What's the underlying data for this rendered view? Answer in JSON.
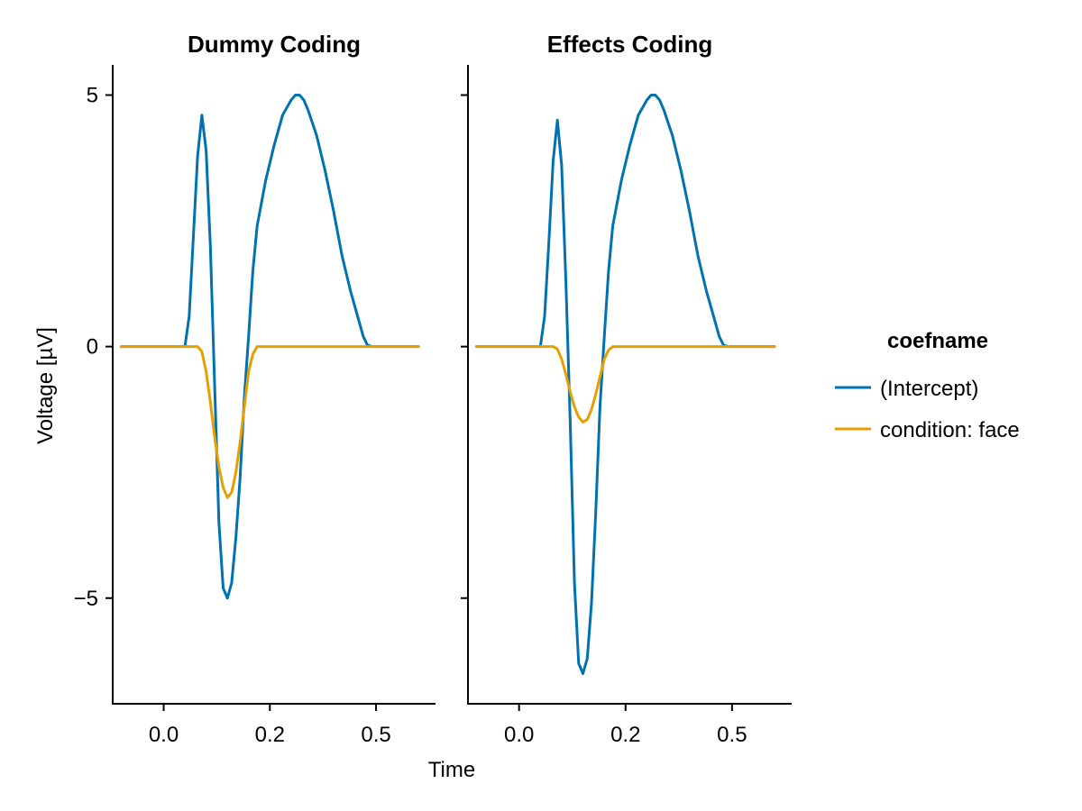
{
  "chart_data": {
    "type": "line",
    "xlabel": "Time",
    "ylabel": "Voltage [µV]",
    "xlim": [
      -0.12,
      0.64
    ],
    "ylim": [
      -7.1,
      5.6
    ],
    "xticks": [
      0.0,
      0.25,
      0.5
    ],
    "xtick_labels": [
      "0.0",
      "0.2",
      "0.5"
    ],
    "yticks": [
      5,
      0,
      -5
    ],
    "ytick_labels": [
      "5",
      "0",
      "−5"
    ],
    "grid": false,
    "legend": {
      "title": "coefname",
      "placement": "right",
      "entries": [
        {
          "name": "(Intercept)",
          "color": "#0072B2"
        },
        {
          "name": "condition: face",
          "color": "#E69F00"
        }
      ]
    },
    "panels": [
      {
        "title": "Dummy Coding",
        "series": [
          {
            "name": "(Intercept)",
            "color": "#0072B2",
            "points": [
              [
                -0.1,
                0
              ],
              [
                0.05,
                0
              ],
              [
                0.06,
                0.6
              ],
              [
                0.07,
                2.2
              ],
              [
                0.08,
                3.8
              ],
              [
                0.09,
                4.6
              ],
              [
                0.1,
                3.9
              ],
              [
                0.11,
                2.0
              ],
              [
                0.12,
                -0.8
              ],
              [
                0.13,
                -3.5
              ],
              [
                0.14,
                -4.8
              ],
              [
                0.15,
                -5.0
              ],
              [
                0.16,
                -4.7
              ],
              [
                0.17,
                -3.8
              ],
              [
                0.18,
                -2.6
              ],
              [
                0.19,
                -1.0
              ],
              [
                0.2,
                0.2
              ],
              [
                0.21,
                1.5
              ],
              [
                0.22,
                2.4
              ],
              [
                0.24,
                3.3
              ],
              [
                0.26,
                4.0
              ],
              [
                0.28,
                4.6
              ],
              [
                0.3,
                4.9
              ],
              [
                0.31,
                5.0
              ],
              [
                0.32,
                5.0
              ],
              [
                0.33,
                4.9
              ],
              [
                0.34,
                4.7
              ],
              [
                0.36,
                4.2
              ],
              [
                0.38,
                3.5
              ],
              [
                0.4,
                2.7
              ],
              [
                0.42,
                1.8
              ],
              [
                0.44,
                1.1
              ],
              [
                0.46,
                0.5
              ],
              [
                0.47,
                0.2
              ],
              [
                0.48,
                0.03
              ],
              [
                0.49,
                0
              ],
              [
                0.6,
                0
              ]
            ]
          },
          {
            "name": "condition: face",
            "color": "#E69F00",
            "points": [
              [
                -0.1,
                0
              ],
              [
                0.08,
                0
              ],
              [
                0.09,
                -0.1
              ],
              [
                0.1,
                -0.5
              ],
              [
                0.11,
                -1.1
              ],
              [
                0.12,
                -1.8
              ],
              [
                0.13,
                -2.4
              ],
              [
                0.14,
                -2.8
              ],
              [
                0.15,
                -3.0
              ],
              [
                0.16,
                -2.9
              ],
              [
                0.17,
                -2.5
              ],
              [
                0.18,
                -1.9
              ],
              [
                0.19,
                -1.2
              ],
              [
                0.2,
                -0.5
              ],
              [
                0.21,
                -0.15
              ],
              [
                0.22,
                0
              ],
              [
                0.6,
                0
              ]
            ]
          }
        ]
      },
      {
        "title": "Effects Coding",
        "series": [
          {
            "name": "(Intercept)",
            "color": "#0072B2",
            "points": [
              [
                -0.1,
                0
              ],
              [
                0.05,
                0
              ],
              [
                0.06,
                0.6
              ],
              [
                0.07,
                2.1
              ],
              [
                0.08,
                3.7
              ],
              [
                0.09,
                4.5
              ],
              [
                0.1,
                3.6
              ],
              [
                0.11,
                1.3
              ],
              [
                0.12,
                -1.5
              ],
              [
                0.13,
                -4.7
              ],
              [
                0.14,
                -6.3
              ],
              [
                0.15,
                -6.5
              ],
              [
                0.16,
                -6.2
              ],
              [
                0.17,
                -5.1
              ],
              [
                0.18,
                -3.3
              ],
              [
                0.19,
                -1.2
              ],
              [
                0.2,
                0.2
              ],
              [
                0.21,
                1.5
              ],
              [
                0.22,
                2.4
              ],
              [
                0.24,
                3.3
              ],
              [
                0.26,
                4.0
              ],
              [
                0.28,
                4.6
              ],
              [
                0.3,
                4.9
              ],
              [
                0.31,
                5.0
              ],
              [
                0.32,
                5.0
              ],
              [
                0.33,
                4.9
              ],
              [
                0.34,
                4.7
              ],
              [
                0.36,
                4.2
              ],
              [
                0.38,
                3.5
              ],
              [
                0.4,
                2.7
              ],
              [
                0.42,
                1.8
              ],
              [
                0.44,
                1.1
              ],
              [
                0.46,
                0.5
              ],
              [
                0.47,
                0.2
              ],
              [
                0.48,
                0.03
              ],
              [
                0.49,
                0
              ],
              [
                0.6,
                0
              ]
            ]
          },
          {
            "name": "condition: face",
            "color": "#E69F00",
            "points": [
              [
                -0.1,
                0
              ],
              [
                0.08,
                0
              ],
              [
                0.09,
                -0.05
              ],
              [
                0.1,
                -0.25
              ],
              [
                0.11,
                -0.55
              ],
              [
                0.12,
                -0.9
              ],
              [
                0.13,
                -1.2
              ],
              [
                0.14,
                -1.4
              ],
              [
                0.15,
                -1.5
              ],
              [
                0.16,
                -1.45
              ],
              [
                0.17,
                -1.25
              ],
              [
                0.18,
                -0.95
              ],
              [
                0.19,
                -0.6
              ],
              [
                0.2,
                -0.25
              ],
              [
                0.21,
                -0.07
              ],
              [
                0.22,
                0
              ],
              [
                0.6,
                0
              ]
            ]
          }
        ]
      }
    ]
  }
}
